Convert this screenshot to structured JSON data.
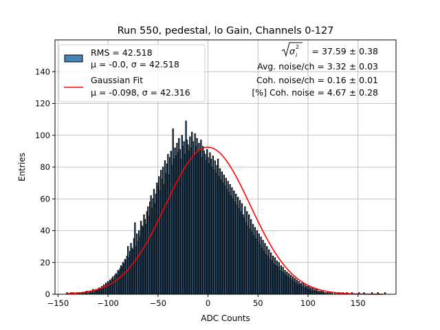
{
  "chart_data": {
    "type": "bar",
    "title": "Run 550, pedestal, lo Gain, Channels 0-127",
    "xlabel": "ADC Counts",
    "ylabel": "Entries",
    "xlim": [
      -153,
      188
    ],
    "ylim": [
      0,
      160
    ],
    "xticks": [
      -150,
      -100,
      -50,
      0,
      50,
      100,
      150
    ],
    "yticks": [
      0,
      20,
      40,
      60,
      80,
      100,
      120,
      140
    ],
    "grid": true,
    "legend_position": "top-left",
    "colors": {
      "bars": "#4682b4",
      "bar_edge": "#000000",
      "fit": "#ff0000"
    },
    "series": [
      {
        "name": "RMS = 42.518",
        "name_line2": "μ = -0.0, σ = 42.518",
        "kind": "histogram"
      },
      {
        "name": "Gaussian Fit",
        "name_line2": "μ = -0.098, σ = 42.316",
        "kind": "line",
        "mu": -0.098,
        "sigma": 42.316,
        "amplitude": 92.5
      }
    ],
    "annotations": {
      "sqrt_label": "σ",
      "sqrt_sup": "2",
      "sqrt_sub": "i",
      "line1": "= 37.59 ± 0.38",
      "line2": "Avg. noise/ch = 3.32 ± 0.03",
      "line3": "Coh. noise/ch = 0.16 ± 0.01",
      "line4": "[%] Coh. noise = 4.67 ± 0.28"
    },
    "histogram": {
      "x_start": -141.5,
      "bin_width": 1.0,
      "counts": [
        1,
        0,
        0,
        0,
        1,
        0,
        1,
        0,
        0,
        0,
        1,
        0,
        1,
        1,
        0,
        1,
        1,
        0,
        1,
        1,
        2,
        0,
        1,
        2,
        1,
        2,
        3,
        1,
        2,
        3,
        2,
        3,
        4,
        3,
        4,
        5,
        4,
        6,
        5,
        7,
        6,
        8,
        7,
        9,
        8,
        10,
        11,
        9,
        12,
        13,
        12,
        15,
        14,
        16,
        18,
        17,
        20,
        19,
        22,
        21,
        24,
        30,
        23,
        27,
        32,
        29,
        28,
        35,
        45,
        30,
        38,
        33,
        40,
        36,
        46,
        43,
        42,
        50,
        47,
        44,
        52,
        55,
        49,
        58,
        62,
        54,
        60,
        66,
        57,
        63,
        70,
        68,
        74,
        65,
        78,
        72,
        80,
        69,
        84,
        76,
        82,
        88,
        75,
        86,
        90,
        81,
        104,
        85,
        92,
        87,
        95,
        89,
        98,
        91,
        85,
        100,
        93,
        96,
        88,
        109,
        97,
        94,
        90,
        99,
        92,
        102,
        96,
        87,
        101,
        93,
        98,
        89,
        95,
        91,
        97,
        86,
        93,
        90,
        88,
        84,
        91,
        86,
        82,
        89,
        85,
        80,
        87,
        78,
        84,
        76,
        81,
        85,
        74,
        79,
        72,
        77,
        70,
        75,
        68,
        73,
        66,
        71,
        64,
        69,
        62,
        67,
        60,
        65,
        58,
        63,
        56,
        61,
        54,
        59,
        52,
        57,
        50,
        48,
        55,
        45,
        52,
        43,
        50,
        41,
        47,
        39,
        44,
        37,
        42,
        35,
        40,
        33,
        38,
        31,
        36,
        29,
        34,
        27,
        32,
        25,
        30,
        24,
        28,
        22,
        26,
        21,
        24,
        19,
        23,
        18,
        21,
        17,
        20,
        15,
        18,
        14,
        17,
        13,
        15,
        12,
        14,
        11,
        13,
        10,
        12,
        9,
        11,
        8,
        10,
        7,
        9,
        6,
        8,
        6,
        7,
        5,
        7,
        4,
        6,
        4,
        5,
        3,
        5,
        3,
        4,
        2,
        4,
        2,
        3,
        2,
        3,
        1,
        2,
        1,
        2,
        1,
        2,
        1,
        1,
        0,
        1,
        1,
        0,
        1,
        0,
        1,
        0,
        0,
        1,
        0,
        0,
        1,
        0,
        1,
        0,
        0,
        1,
        0,
        0,
        0,
        1,
        0,
        0,
        0,
        0,
        1,
        0,
        0,
        0,
        0,
        0,
        0,
        1,
        0,
        0,
        0,
        0,
        1,
        0,
        0,
        0,
        0,
        0,
        0,
        0,
        1,
        0,
        0,
        0,
        0,
        0,
        1,
        0,
        0,
        0,
        0,
        0,
        0,
        1
      ]
    }
  }
}
